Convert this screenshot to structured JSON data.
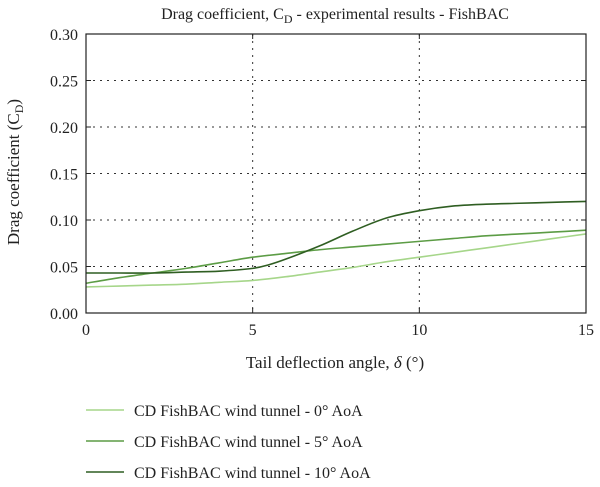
{
  "chart_data": {
    "type": "line",
    "title": "Drag coefficient, C",
    "title_sub": "D",
    "title_rest": " - experimental results - FishBAC",
    "xlabel": "Tail deflection angle, ",
    "xlabel_symbol": "δ",
    "xlabel_unit": " (°)",
    "ylabel": "Drag coefficient (C",
    "ylabel_sub": "D",
    "ylabel_end": ")",
    "xlim": [
      0,
      15
    ],
    "ylim": [
      0,
      0.3
    ],
    "xticks": [
      0,
      5,
      10,
      15
    ],
    "xtick_labels": [
      "0",
      "5",
      "10",
      "15"
    ],
    "yticks": [
      0,
      0.05,
      0.1,
      0.15,
      0.2,
      0.25,
      0.3
    ],
    "ytick_labels": [
      "0.00",
      "0.05",
      "0.10",
      "0.15",
      "0.20",
      "0.25",
      "0.30"
    ],
    "grid": true,
    "legend_position": "bottom",
    "series": [
      {
        "name": "CD FishBAC wind tunnel - 0° AoA",
        "color": "#a6d68a",
        "x": [
          0,
          1,
          2,
          3,
          4,
          5,
          6,
          7,
          8,
          9,
          10,
          11,
          12,
          13,
          14,
          15
        ],
        "y": [
          0.028,
          0.029,
          0.03,
          0.031,
          0.033,
          0.035,
          0.039,
          0.044,
          0.049,
          0.055,
          0.06,
          0.065,
          0.07,
          0.075,
          0.08,
          0.085
        ]
      },
      {
        "name": "CD FishBAC wind tunnel - 5° AoA",
        "color": "#5c9c45",
        "x": [
          0,
          1,
          2,
          3,
          4,
          5,
          6,
          7,
          8,
          9,
          10,
          11,
          12,
          13,
          14,
          15
        ],
        "y": [
          0.032,
          0.038,
          0.043,
          0.048,
          0.054,
          0.06,
          0.064,
          0.068,
          0.071,
          0.074,
          0.077,
          0.08,
          0.083,
          0.085,
          0.087,
          0.089
        ]
      },
      {
        "name": "CD FishBAC wind tunnel - 10° AoA",
        "color": "#2f5e22",
        "x": [
          0,
          1,
          2,
          3,
          4,
          5,
          5.5,
          6,
          7,
          8,
          9,
          10,
          11,
          12,
          13,
          14,
          15
        ],
        "y": [
          0.043,
          0.043,
          0.043,
          0.044,
          0.045,
          0.048,
          0.052,
          0.058,
          0.072,
          0.088,
          0.102,
          0.11,
          0.115,
          0.117,
          0.118,
          0.119,
          0.12
        ]
      }
    ]
  }
}
